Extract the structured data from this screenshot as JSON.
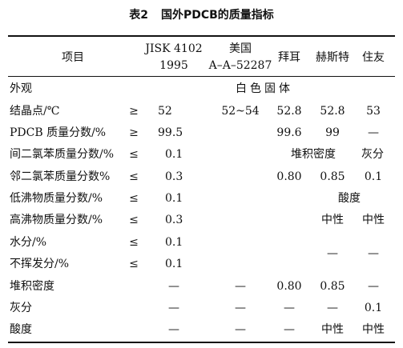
{
  "caption": {
    "number": "表2",
    "title": "国外PDCB的质量指标"
  },
  "header": {
    "item": "项目",
    "jisk_line1": "JISK 4102",
    "jisk_line2": "1995",
    "us_line1": "美国",
    "us_line2": "A–A–52287",
    "bayer": "拜耳",
    "hechst": "赫斯特",
    "sumitomo": "住友"
  },
  "rows": [
    {
      "name": "外观",
      "op": "",
      "jisk": "",
      "us": "白色固体",
      "bayer": "",
      "hechst": "",
      "sumitomo": ""
    },
    {
      "name": "结晶点/℃",
      "op": "≥",
      "jisk": "52",
      "us": "52~54",
      "bayer": "52.8",
      "hechst": "52.8",
      "sumitomo": "53"
    },
    {
      "name": "PDCB 质量分数/%",
      "op": "≥",
      "jisk": "99.5",
      "us": "",
      "bayer": "99.6",
      "hechst": "99",
      "sumitomo": "—"
    },
    {
      "name": "间二氯苯质量分数/%",
      "op": "≤",
      "jisk": "0.1",
      "us": "",
      "span_bayer_hechst": "堆积密度",
      "sumitomo": "灰分"
    },
    {
      "name": "邻二氯苯质量分数%",
      "op": "≤",
      "jisk": "0.3",
      "us": "",
      "bayer": "0.80",
      "hechst": "0.85",
      "sumitomo": "0.1"
    },
    {
      "name": "低沸物质量分数/%",
      "op": "≤",
      "jisk": "0.1",
      "us": "",
      "span_hechst_sumitomo": "酸度"
    },
    {
      "name": "高沸物质量分数/%",
      "op": "≤",
      "jisk": "0.3",
      "us": "",
      "bayer": "",
      "hechst": "中性",
      "sumitomo": "中性"
    },
    {
      "name": "水分/%",
      "op": "≤",
      "jisk": "0.1",
      "us": "",
      "bayer": "",
      "hechst": "",
      "sumitomo": ""
    },
    {
      "name": "不挥发分/%",
      "op": "≤",
      "jisk": "0.1",
      "us": "",
      "bayer": "",
      "hechst": "",
      "sumitomo": ""
    },
    {
      "name": "堆积密度",
      "op": "",
      "jisk": "—",
      "us": "—",
      "bayer": "0.80",
      "hechst": "0.85",
      "sumitomo": "—"
    },
    {
      "name": "灰分",
      "op": "",
      "jisk": "—",
      "us": "—",
      "bayer": "—",
      "hechst": "—",
      "sumitomo": "0.1"
    },
    {
      "name": "酸度",
      "op": "",
      "jisk": "—",
      "us": "—",
      "bayer": "—",
      "hechst": "中性",
      "sumitomo": "中性"
    }
  ],
  "merged_dashes": {
    "hechst": "—",
    "sumitomo": "—"
  }
}
